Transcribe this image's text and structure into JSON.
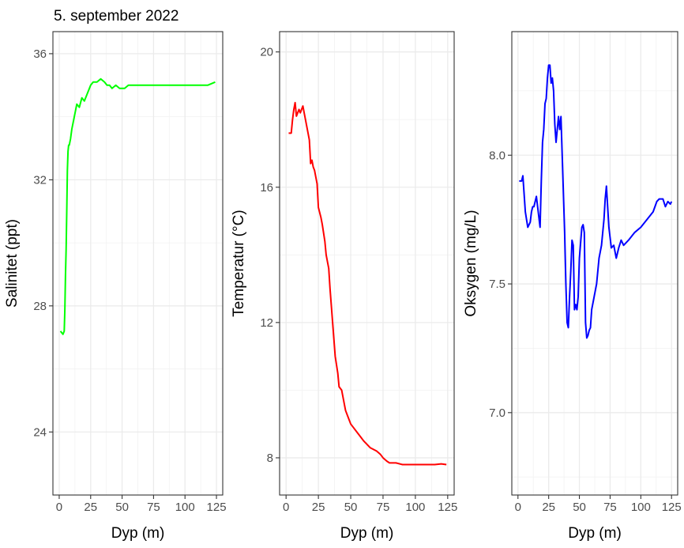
{
  "title": "5. september 2022",
  "colors": {
    "salinity": "#00ff00",
    "temperature": "#ff0000",
    "oxygen": "#0000ff"
  },
  "chart_data": [
    {
      "type": "line",
      "xlabel": "Dyp (m)",
      "ylabel": "Salinitet (ppt)",
      "xlim": [
        -5,
        130
      ],
      "ylim": [
        22,
        36.7
      ],
      "xticks": [
        "0",
        "25",
        "50",
        "75",
        "100",
        "125"
      ],
      "yticks": [
        "24",
        "28",
        "32",
        "36"
      ],
      "grid": true,
      "series": [
        {
          "color": "#00ff00",
          "x": [
            1,
            3,
            4,
            4.5,
            5,
            5.5,
            6,
            6.5,
            7,
            7.5,
            8,
            9,
            10,
            12,
            14,
            16,
            18,
            20,
            22,
            24,
            25,
            27,
            30,
            33,
            36,
            38,
            40,
            42,
            45,
            48,
            52,
            55,
            60,
            70,
            80,
            90,
            100,
            110,
            118,
            124
          ],
          "y": [
            27.2,
            27.1,
            27.2,
            27.9,
            29.0,
            29.8,
            31.0,
            32.3,
            32.9,
            33.1,
            33.1,
            33.3,
            33.6,
            34.0,
            34.4,
            34.3,
            34.6,
            34.5,
            34.7,
            34.9,
            35.0,
            35.1,
            35.1,
            35.2,
            35.1,
            35.0,
            35.0,
            34.9,
            35.0,
            34.9,
            34.9,
            35.0,
            35.0,
            35.0,
            35.0,
            35.0,
            35.0,
            35.0,
            35.0,
            35.1
          ]
        }
      ]
    },
    {
      "type": "line",
      "xlabel": "Dyp (m)",
      "ylabel": "Temperatur (°C)",
      "xlim": [
        -5,
        130
      ],
      "ylim": [
        6.9,
        20.6
      ],
      "xticks": [
        "0",
        "25",
        "50",
        "75",
        "100",
        "125"
      ],
      "yticks": [
        "8",
        "12",
        "16",
        "20"
      ],
      "grid": true,
      "series": [
        {
          "color": "#ff0000",
          "x": [
            2,
            4,
            5,
            6,
            7,
            8,
            9,
            10,
            11,
            12,
            13,
            14,
            15,
            16,
            17,
            18,
            19,
            20,
            21,
            22,
            24,
            25,
            27,
            28,
            30,
            31,
            33,
            34,
            35,
            37,
            38,
            40,
            41,
            43,
            45,
            46,
            48,
            50,
            52,
            54,
            56,
            58,
            60,
            65,
            70,
            73,
            75,
            78,
            80,
            85,
            90,
            100,
            110,
            115,
            120,
            124
          ],
          "y": [
            17.6,
            17.6,
            18.0,
            18.3,
            18.5,
            18.1,
            18.2,
            18.3,
            18.2,
            18.3,
            18.4,
            18.2,
            18.0,
            17.8,
            17.6,
            17.4,
            16.7,
            16.8,
            16.6,
            16.5,
            16.1,
            15.4,
            15.1,
            14.9,
            14.4,
            14.0,
            13.6,
            13.0,
            12.5,
            11.5,
            11.0,
            10.5,
            10.1,
            10.0,
            9.6,
            9.4,
            9.2,
            9.0,
            8.9,
            8.8,
            8.7,
            8.6,
            8.5,
            8.3,
            8.2,
            8.1,
            8.0,
            7.9,
            7.85,
            7.85,
            7.8,
            7.8,
            7.8,
            7.8,
            7.82,
            7.8
          ]
        }
      ]
    },
    {
      "type": "line",
      "xlabel": "Dyp (m)",
      "ylabel": "Oksygen (mg/L)",
      "xlim": [
        -5,
        130
      ],
      "ylim": [
        6.68,
        8.48
      ],
      "xticks": [
        "0",
        "25",
        "50",
        "75",
        "100",
        "125"
      ],
      "yticks": [
        "7.0",
        "7.5",
        "8.0"
      ],
      "grid": true,
      "series": [
        {
          "color": "#0000ff",
          "x": [
            1,
            3,
            4,
            5,
            6,
            7,
            8,
            9,
            10,
            11,
            12,
            13,
            14,
            15,
            16,
            17,
            18,
            19,
            20,
            21,
            22,
            23,
            24,
            25,
            26,
            27,
            28,
            29,
            30,
            31,
            32,
            33,
            34,
            35,
            36,
            37,
            38,
            39,
            40,
            41,
            42,
            43,
            44,
            45,
            46,
            47,
            48,
            49,
            50,
            52,
            53,
            54,
            55,
            56,
            57,
            58,
            59,
            60,
            62,
            64,
            66,
            68,
            70,
            71,
            72,
            73,
            74,
            75,
            76,
            78,
            80,
            82,
            84,
            86,
            88,
            90,
            95,
            100,
            105,
            110,
            113,
            115,
            118,
            120,
            122,
            124,
            125
          ],
          "y": [
            7.9,
            7.9,
            7.92,
            7.85,
            7.78,
            7.75,
            7.72,
            7.73,
            7.74,
            7.78,
            7.8,
            7.8,
            7.82,
            7.84,
            7.8,
            7.76,
            7.72,
            7.9,
            8.05,
            8.1,
            8.2,
            8.22,
            8.3,
            8.35,
            8.35,
            8.28,
            8.3,
            8.25,
            8.12,
            8.05,
            8.1,
            8.15,
            8.1,
            8.15,
            8.0,
            7.85,
            7.7,
            7.5,
            7.35,
            7.33,
            7.45,
            7.55,
            7.67,
            7.65,
            7.4,
            7.42,
            7.4,
            7.45,
            7.6,
            7.72,
            7.73,
            7.7,
            7.35,
            7.29,
            7.3,
            7.32,
            7.33,
            7.4,
            7.45,
            7.5,
            7.6,
            7.65,
            7.75,
            7.83,
            7.88,
            7.8,
            7.72,
            7.68,
            7.64,
            7.65,
            7.6,
            7.64,
            7.67,
            7.65,
            7.66,
            7.67,
            7.7,
            7.72,
            7.75,
            7.78,
            7.82,
            7.83,
            7.83,
            7.8,
            7.82,
            7.81,
            7.82
          ]
        }
      ]
    }
  ]
}
